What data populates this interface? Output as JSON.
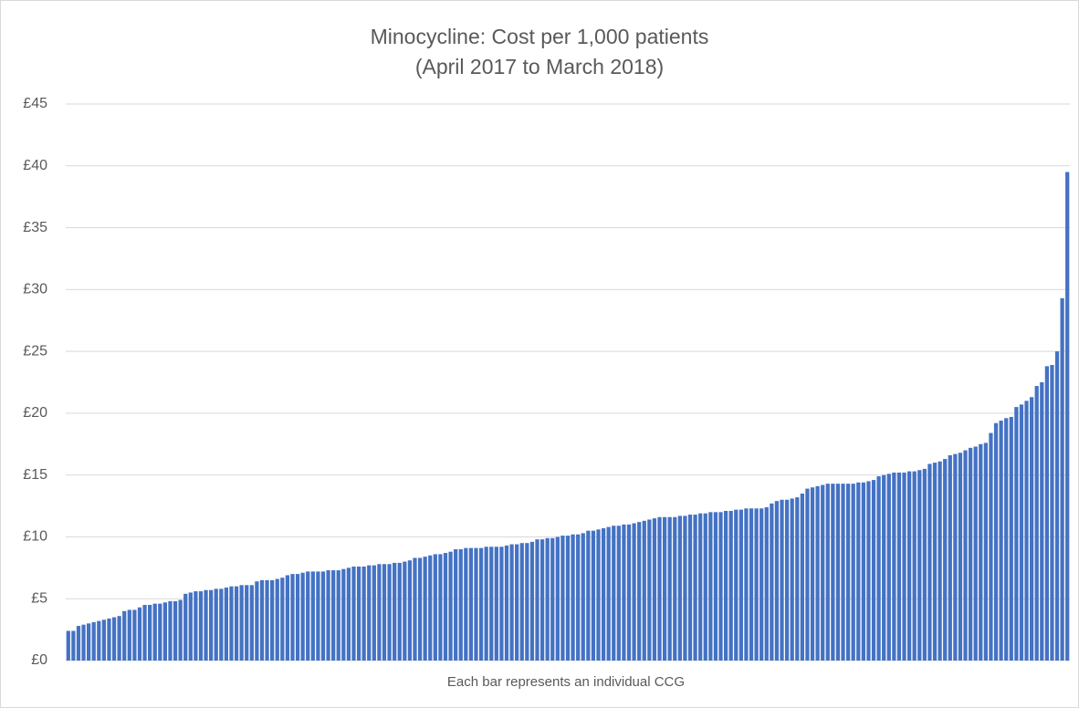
{
  "chart_data": {
    "type": "bar",
    "title": "Minocycline: Cost per 1,000 patients",
    "subtitle": "(April 2017 to March 2018)",
    "x_label": "Each bar represents an individual CCG",
    "color": "#4472c4",
    "grid": true,
    "ylim": [
      0,
      45
    ],
    "yticks": [
      {
        "value": 0,
        "label": "£0"
      },
      {
        "value": 5,
        "label": "£5"
      },
      {
        "value": 10,
        "label": "£10"
      },
      {
        "value": 15,
        "label": "£15"
      },
      {
        "value": 20,
        "label": "£20"
      },
      {
        "value": 25,
        "label": "£25"
      },
      {
        "value": 30,
        "label": "£30"
      },
      {
        "value": 35,
        "label": "£35"
      },
      {
        "value": 40,
        "label": "£40"
      },
      {
        "value": 45,
        "label": "£45"
      }
    ],
    "values": [
      2.4,
      2.4,
      2.8,
      2.9,
      3.0,
      3.1,
      3.2,
      3.3,
      3.4,
      3.5,
      3.6,
      4.0,
      4.1,
      4.1,
      4.3,
      4.5,
      4.5,
      4.6,
      4.6,
      4.7,
      4.8,
      4.8,
      4.9,
      5.4,
      5.5,
      5.6,
      5.6,
      5.7,
      5.7,
      5.8,
      5.8,
      5.9,
      6.0,
      6.0,
      6.1,
      6.1,
      6.1,
      6.4,
      6.5,
      6.5,
      6.5,
      6.6,
      6.7,
      6.9,
      7.0,
      7.0,
      7.1,
      7.2,
      7.2,
      7.2,
      7.2,
      7.3,
      7.3,
      7.3,
      7.4,
      7.5,
      7.6,
      7.6,
      7.6,
      7.7,
      7.7,
      7.8,
      7.8,
      7.8,
      7.9,
      7.9,
      8.0,
      8.1,
      8.3,
      8.3,
      8.4,
      8.5,
      8.6,
      8.6,
      8.7,
      8.8,
      9.0,
      9.0,
      9.1,
      9.1,
      9.1,
      9.1,
      9.2,
      9.2,
      9.2,
      9.2,
      9.3,
      9.4,
      9.4,
      9.5,
      9.5,
      9.6,
      9.8,
      9.8,
      9.9,
      9.9,
      10.0,
      10.1,
      10.1,
      10.2,
      10.2,
      10.3,
      10.5,
      10.5,
      10.6,
      10.7,
      10.8,
      10.9,
      10.9,
      11.0,
      11.0,
      11.1,
      11.2,
      11.3,
      11.4,
      11.5,
      11.6,
      11.6,
      11.6,
      11.6,
      11.7,
      11.7,
      11.8,
      11.8,
      11.9,
      11.9,
      12.0,
      12.0,
      12.0,
      12.1,
      12.1,
      12.2,
      12.2,
      12.3,
      12.3,
      12.3,
      12.3,
      12.4,
      12.7,
      12.9,
      13.0,
      13.0,
      13.1,
      13.2,
      13.5,
      13.9,
      14.0,
      14.1,
      14.2,
      14.3,
      14.3,
      14.3,
      14.3,
      14.3,
      14.3,
      14.4,
      14.4,
      14.5,
      14.6,
      14.9,
      15.0,
      15.1,
      15.2,
      15.2,
      15.2,
      15.3,
      15.3,
      15.4,
      15.5,
      15.9,
      16.0,
      16.1,
      16.3,
      16.6,
      16.7,
      16.8,
      17.0,
      17.2,
      17.3,
      17.5,
      17.6,
      18.4,
      19.2,
      19.4,
      19.6,
      19.7,
      20.5,
      20.7,
      21.0,
      21.3,
      22.2,
      22.5,
      23.8,
      23.9,
      25.0,
      29.3,
      39.5
    ]
  }
}
